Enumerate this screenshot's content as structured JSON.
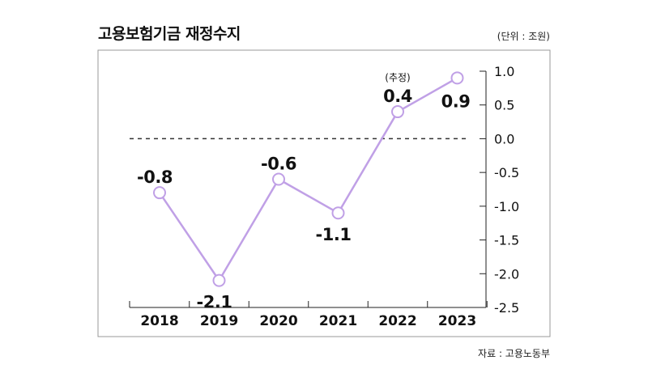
{
  "title": "고용보험기금 재정수지",
  "unit": "(단위 : 조원)",
  "source": "자료 : 고용노동부",
  "colors": {
    "line": "#c0a0e6",
    "marker_fill": "#ffffff",
    "frame": "#999999",
    "zero_line": "#333333"
  },
  "chart_data": {
    "type": "line",
    "title": "고용보험기금 재정수지",
    "xlabel": "",
    "ylabel": "",
    "categories": [
      "2018",
      "2019",
      "2020",
      "2021",
      "2022",
      "2023"
    ],
    "series": [
      {
        "values": [
          -0.8,
          -2.1,
          -0.6,
          -1.1,
          0.4,
          0.9
        ]
      }
    ],
    "data_labels": [
      "-0.8",
      "-2.1",
      "-0.6",
      "-1.1",
      "0.4",
      "0.9"
    ],
    "annotations": [
      {
        "category": "2022",
        "text": "(추정)"
      }
    ],
    "ylim": [
      -2.5,
      1.0
    ],
    "yticks": [
      "1.0",
      "0.5",
      "0.0",
      "-0.5",
      "-1.0",
      "-1.5",
      "-2.0",
      "-2.5"
    ],
    "y_axis_side": "right",
    "reference_line": 0.0,
    "grid": false
  }
}
